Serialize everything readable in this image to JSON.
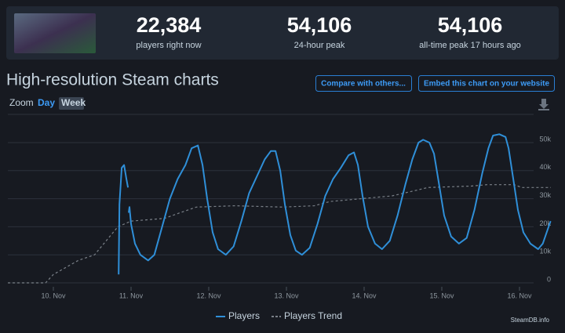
{
  "header": {
    "stats": [
      {
        "value": "22,384",
        "label": "players right now"
      },
      {
        "value": "54,106",
        "label": "24-hour peak"
      },
      {
        "value": "54,106",
        "label": "all-time peak 17 hours ago"
      }
    ]
  },
  "title": "High-resolution Steam charts",
  "buttons": [
    "Compare with others...",
    "Embed this chart on your website"
  ],
  "zoom": {
    "label": "Zoom",
    "options": [
      "Day",
      "Week"
    ]
  },
  "credit": "SteamDB.info",
  "chart_data": {
    "type": "line",
    "xlim": [
      -0.586,
      6.404
    ],
    "xticks": [
      {
        "value": 0,
        "label": "10. Nov"
      },
      {
        "value": 1,
        "label": "11. Nov"
      },
      {
        "value": 2,
        "label": "12. Nov"
      },
      {
        "value": 3,
        "label": "13. Nov"
      },
      {
        "value": 4,
        "label": "14. Nov"
      },
      {
        "value": 5,
        "label": "15. Nov"
      },
      {
        "value": 6,
        "label": "16. Nov"
      }
    ],
    "ylim": [
      0,
      60000
    ],
    "yticks": [
      0,
      {
        "value": 10000,
        "label": "10k"
      },
      {
        "value": 20000,
        "label": "20k"
      },
      {
        "value": 30000,
        "label": "30k"
      },
      {
        "value": 40000,
        "label": "40k"
      },
      {
        "value": 50000,
        "label": "50k"
      }
    ],
    "grid": true,
    "series": [
      {
        "name": "Players",
        "color": "#2f8fd8",
        "dashed": false,
        "x": [
          0.84,
          0.85,
          0.88,
          0.91,
          0.94,
          0.96,
          0.965,
          0.97,
          0.98,
          1.0,
          1.05,
          1.12,
          1.22,
          1.3,
          1.4,
          1.5,
          1.6,
          1.7,
          1.78,
          1.86,
          1.92,
          1.98,
          2.05,
          2.12,
          2.22,
          2.32,
          2.42,
          2.52,
          2.62,
          2.72,
          2.8,
          2.86,
          2.92,
          2.98,
          3.05,
          3.12,
          3.2,
          3.3,
          3.4,
          3.5,
          3.6,
          3.7,
          3.8,
          3.87,
          3.92,
          3.98,
          4.05,
          4.14,
          4.23,
          4.33,
          4.43,
          4.53,
          4.62,
          4.7,
          4.76,
          4.84,
          4.9,
          4.96,
          5.03,
          5.12,
          5.22,
          5.32,
          5.42,
          5.52,
          5.6,
          5.66,
          5.74,
          5.82,
          5.86,
          5.92,
          5.98,
          6.05,
          6.14,
          6.24,
          6.3,
          6.4
        ],
        "values": [
          3000,
          28000,
          41000,
          42000,
          37000,
          34000,
          null,
          25000,
          27000,
          21000,
          14000,
          10000,
          8000,
          10000,
          20000,
          30000,
          37000,
          42000,
          48000,
          49000,
          42000,
          30000,
          18000,
          12000,
          10000,
          13000,
          22000,
          32000,
          38000,
          44000,
          47000,
          47000,
          40000,
          28000,
          17000,
          11500,
          10000,
          12500,
          21000,
          31000,
          37000,
          41000,
          45500,
          46500,
          42000,
          31000,
          20000,
          14000,
          12000,
          15000,
          24000,
          35000,
          44000,
          50000,
          51000,
          50000,
          46000,
          36000,
          24000,
          16500,
          14000,
          16000,
          26000,
          39000,
          48000,
          52500,
          53000,
          52000,
          48000,
          37000,
          26000,
          18000,
          14000,
          12000,
          14000,
          22000
        ]
      },
      {
        "name": "Players Trend",
        "color": "#7a8088",
        "dashed": true,
        "x": [
          -0.586,
          -0.1,
          0.0,
          0.32,
          0.53,
          0.83,
          1.0,
          1.43,
          1.63,
          1.84,
          2.34,
          2.95,
          3.36,
          3.56,
          3.96,
          4.36,
          4.67,
          4.82,
          5.38,
          5.58,
          5.93,
          6.03,
          6.404
        ],
        "values": [
          0,
          0,
          3000,
          8000,
          10000,
          20000,
          22000,
          23000,
          25000,
          27000,
          27500,
          27000,
          27500,
          29000,
          30000,
          31000,
          33000,
          34000,
          34500,
          35000,
          35000,
          34000,
          34000
        ]
      }
    ]
  }
}
